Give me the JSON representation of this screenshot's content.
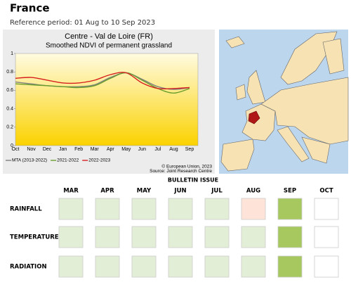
{
  "header": {
    "title": "France",
    "subtitle": "Reference period: 01 Aug to 10 Sep 2023"
  },
  "chart_data": {
    "type": "line",
    "title": "Centre - Val de Loire (FR)",
    "subtitle": "Smoothed NDVI of permanent grassland",
    "categories": [
      "Oct",
      "Nov",
      "Dec",
      "Jan",
      "Feb",
      "Mar",
      "Apr",
      "May",
      "Jun",
      "Jul",
      "Aug",
      "Sep"
    ],
    "series": [
      {
        "name": "MTA (2013-2022)",
        "color": "#808080",
        "values": [
          0.69,
          0.67,
          0.65,
          0.64,
          0.64,
          0.66,
          0.74,
          0.79,
          0.72,
          0.64,
          0.61,
          0.63
        ]
      },
      {
        "name": "2021-2022",
        "color": "#6a9e2f",
        "values": [
          0.67,
          0.66,
          0.65,
          0.64,
          0.63,
          0.65,
          0.73,
          0.79,
          0.71,
          0.62,
          0.57,
          0.62
        ]
      },
      {
        "name": "2022-2023",
        "color": "#d62020",
        "values": [
          0.73,
          0.74,
          0.71,
          0.68,
          0.68,
          0.71,
          0.77,
          0.79,
          0.68,
          0.62,
          0.62,
          0.63
        ]
      }
    ],
    "ylim": [
      0,
      1
    ],
    "yticks": [
      0,
      0.2,
      0.4,
      0.6,
      0.8,
      1
    ],
    "notes": [
      "© European Union, 2023",
      "Source: Joint Research Centre"
    ]
  },
  "bulletin": {
    "title": "BULLETIN ISSUE",
    "columns": [
      "MAR",
      "APR",
      "MAY",
      "JUN",
      "JUL",
      "AUG",
      "SEP",
      "OCT"
    ],
    "rows": [
      {
        "label": "RAINFALL",
        "colors": [
          "#e3eed6",
          "#e3eed6",
          "#e3eed6",
          "#e3eed6",
          "#e3eed6",
          "#fde3d8",
          "#a6c85e",
          "#ffffff"
        ]
      },
      {
        "label": "TEMPERATURE",
        "colors": [
          "#e3eed6",
          "#e3eed6",
          "#e3eed6",
          "#e3eed6",
          "#e3eed6",
          "#e3eed6",
          "#a6c85e",
          "#ffffff"
        ]
      },
      {
        "label": "RADIATION",
        "colors": [
          "#e3eed6",
          "#e3eed6",
          "#e3eed6",
          "#e3eed6",
          "#e3eed6",
          "#e3eed6",
          "#a6c85e",
          "#ffffff"
        ]
      }
    ]
  }
}
